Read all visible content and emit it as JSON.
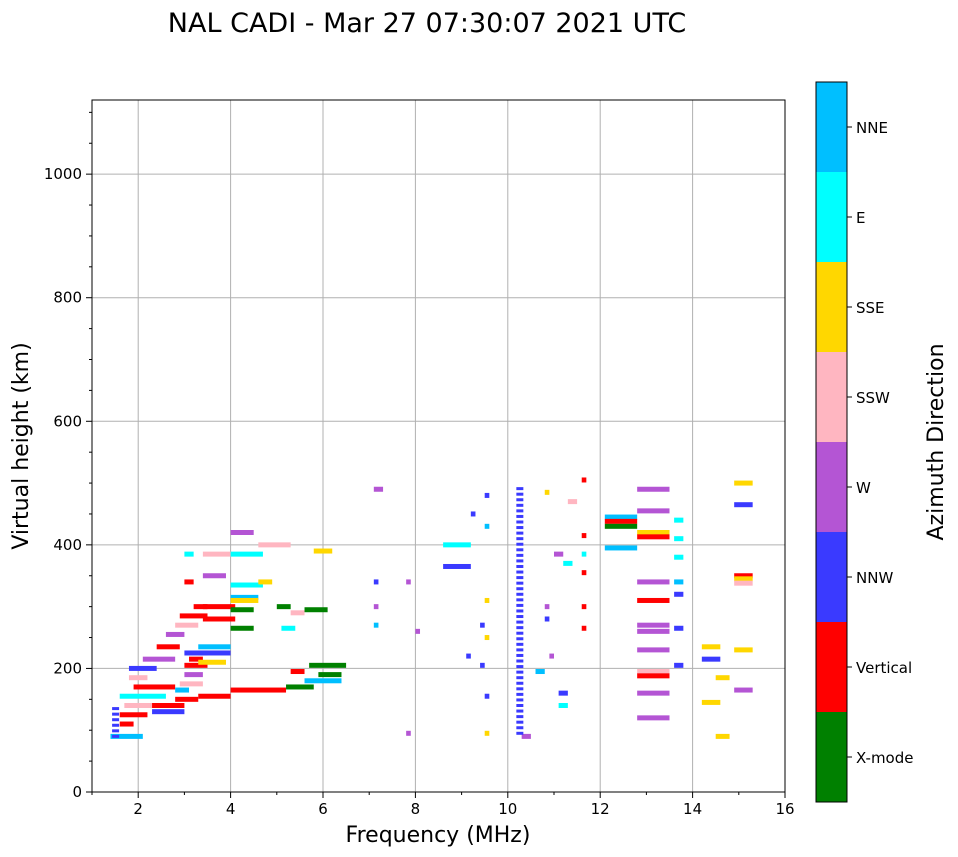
{
  "chart_data": {
    "type": "scatter",
    "title": "NAL CADI - Mar 27 07:30:07 2021 UTC",
    "xlabel": "Frequency (MHz)",
    "ylabel": "Virtual height (km)",
    "xlim": [
      1,
      16
    ],
    "ylim": [
      0,
      1120
    ],
    "xticks": [
      2,
      4,
      6,
      8,
      10,
      12,
      14,
      16
    ],
    "yticks": [
      0,
      200,
      400,
      600,
      800,
      1000
    ],
    "grid": true,
    "colorbar": {
      "label": "Azimuth Direction",
      "categories": [
        {
          "name": "X-mode",
          "color": "#008000"
        },
        {
          "name": "Vertical",
          "color": "#ff0000"
        },
        {
          "name": "NNW",
          "color": "#3a3aff"
        },
        {
          "name": "W",
          "color": "#b455d4"
        },
        {
          "name": "SSW",
          "color": "#ffb6c1"
        },
        {
          "name": "SSE",
          "color": "#ffd700"
        },
        {
          "name": "E",
          "color": "#00ffff"
        },
        {
          "name": "NNE",
          "color": "#00bfff"
        }
      ]
    },
    "segments": [
      {
        "f0": 1.4,
        "f1": 2.1,
        "h": 90,
        "c": "NNE"
      },
      {
        "f0": 1.6,
        "f1": 1.9,
        "h": 110,
        "c": "Vertical"
      },
      {
        "f0": 1.6,
        "f1": 2.2,
        "h": 125,
        "c": "Vertical"
      },
      {
        "f0": 1.7,
        "f1": 2.4,
        "h": 140,
        "c": "SSW"
      },
      {
        "f0": 1.6,
        "f1": 2.6,
        "h": 155,
        "c": "E"
      },
      {
        "f0": 1.9,
        "f1": 2.8,
        "h": 170,
        "c": "Vertical"
      },
      {
        "f0": 1.8,
        "f1": 2.2,
        "h": 185,
        "c": "SSW"
      },
      {
        "f0": 1.8,
        "f1": 2.4,
        "h": 200,
        "c": "NNW"
      },
      {
        "f0": 2.1,
        "f1": 2.8,
        "h": 215,
        "c": "W"
      },
      {
        "f0": 2.4,
        "f1": 2.9,
        "h": 235,
        "c": "Vertical"
      },
      {
        "f0": 2.6,
        "f1": 3.0,
        "h": 255,
        "c": "W"
      },
      {
        "f0": 2.8,
        "f1": 3.3,
        "h": 270,
        "c": "SSW"
      },
      {
        "f0": 2.9,
        "f1": 3.5,
        "h": 285,
        "c": "Vertical"
      },
      {
        "f0": 2.3,
        "f1": 3.0,
        "h": 130,
        "c": "NNW"
      },
      {
        "f0": 2.3,
        "f1": 3.0,
        "h": 140,
        "c": "Vertical"
      },
      {
        "f0": 2.8,
        "f1": 3.3,
        "h": 150,
        "c": "Vertical"
      },
      {
        "f0": 2.8,
        "f1": 3.1,
        "h": 165,
        "c": "NNE"
      },
      {
        "f0": 2.9,
        "f1": 3.4,
        "h": 175,
        "c": "SSW"
      },
      {
        "f0": 3.0,
        "f1": 3.4,
        "h": 190,
        "c": "W"
      },
      {
        "f0": 3.0,
        "f1": 3.5,
        "h": 205,
        "c": "Vertical"
      },
      {
        "f0": 3.1,
        "f1": 3.4,
        "h": 215,
        "c": "Vertical"
      },
      {
        "f0": 3.0,
        "f1": 3.5,
        "h": 225,
        "c": "NNW"
      },
      {
        "f0": 3.2,
        "f1": 3.5,
        "h": 300,
        "c": "Vertical"
      },
      {
        "f0": 3.4,
        "f1": 4.1,
        "h": 300,
        "c": "Vertical"
      },
      {
        "f0": 3.4,
        "f1": 4.1,
        "h": 280,
        "c": "Vertical"
      },
      {
        "f0": 3.3,
        "f1": 4.0,
        "h": 235,
        "c": "NNE"
      },
      {
        "f0": 3.3,
        "f1": 4.0,
        "h": 225,
        "c": "NNW"
      },
      {
        "f0": 3.3,
        "f1": 3.9,
        "h": 210,
        "c": "SSE"
      },
      {
        "f0": 3.3,
        "f1": 4.0,
        "h": 155,
        "c": "Vertical"
      },
      {
        "f0": 3.4,
        "f1": 3.9,
        "h": 350,
        "c": "W"
      },
      {
        "f0": 3.4,
        "f1": 4.0,
        "h": 385,
        "c": "SSW"
      },
      {
        "f0": 3.0,
        "f1": 3.2,
        "h": 385,
        "c": "E"
      },
      {
        "f0": 3.0,
        "f1": 3.2,
        "h": 340,
        "c": "Vertical"
      },
      {
        "f0": 4.0,
        "f1": 5.2,
        "h": 165,
        "c": "Vertical"
      },
      {
        "f0": 5.2,
        "f1": 5.8,
        "h": 170,
        "c": "X-mode"
      },
      {
        "f0": 5.6,
        "f1": 6.4,
        "h": 180,
        "c": "NNE"
      },
      {
        "f0": 5.9,
        "f1": 6.4,
        "h": 190,
        "c": "X-mode"
      },
      {
        "f0": 5.7,
        "f1": 6.5,
        "h": 205,
        "c": "X-mode"
      },
      {
        "f0": 5.3,
        "f1": 5.6,
        "h": 195,
        "c": "Vertical"
      },
      {
        "f0": 4.0,
        "f1": 4.5,
        "h": 265,
        "c": "X-mode"
      },
      {
        "f0": 4.0,
        "f1": 4.5,
        "h": 295,
        "c": "X-mode"
      },
      {
        "f0": 4.0,
        "f1": 4.6,
        "h": 315,
        "c": "NNE"
      },
      {
        "f0": 4.0,
        "f1": 4.7,
        "h": 335,
        "c": "E"
      },
      {
        "f0": 4.0,
        "f1": 4.6,
        "h": 310,
        "c": "SSE"
      },
      {
        "f0": 4.0,
        "f1": 4.7,
        "h": 385,
        "c": "E"
      },
      {
        "f0": 4.0,
        "f1": 4.5,
        "h": 420,
        "c": "W"
      },
      {
        "f0": 4.6,
        "f1": 5.3,
        "h": 400,
        "c": "SSW"
      },
      {
        "f0": 5.0,
        "f1": 5.3,
        "h": 300,
        "c": "X-mode"
      },
      {
        "f0": 5.6,
        "f1": 6.1,
        "h": 295,
        "c": "X-mode"
      },
      {
        "f0": 5.8,
        "f1": 6.2,
        "h": 390,
        "c": "SSE"
      },
      {
        "f0": 5.3,
        "f1": 5.6,
        "h": 290,
        "c": "SSW"
      },
      {
        "f0": 4.6,
        "f1": 4.9,
        "h": 340,
        "c": "SSE"
      },
      {
        "f0": 5.1,
        "f1": 5.4,
        "h": 265,
        "c": "E"
      },
      {
        "f0": 7.1,
        "f1": 7.3,
        "h": 490,
        "c": "W"
      },
      {
        "f0": 7.1,
        "f1": 7.2,
        "h": 340,
        "c": "NNW"
      },
      {
        "f0": 7.1,
        "f1": 7.2,
        "h": 300,
        "c": "W"
      },
      {
        "f0": 7.1,
        "f1": 7.2,
        "h": 270,
        "c": "NNE"
      },
      {
        "f0": 7.8,
        "f1": 7.9,
        "h": 340,
        "c": "W"
      },
      {
        "f0": 8.0,
        "f1": 8.1,
        "h": 260,
        "c": "W"
      },
      {
        "f0": 7.8,
        "f1": 7.9,
        "h": 95,
        "c": "W"
      },
      {
        "f0": 8.6,
        "f1": 9.2,
        "h": 400,
        "c": "E"
      },
      {
        "f0": 8.6,
        "f1": 9.2,
        "h": 365,
        "c": "NNW"
      },
      {
        "f0": 9.2,
        "f1": 9.3,
        "h": 450,
        "c": "NNW"
      },
      {
        "f0": 9.5,
        "f1": 9.6,
        "h": 480,
        "c": "NNW"
      },
      {
        "f0": 9.5,
        "f1": 9.6,
        "h": 430,
        "c": "NNE"
      },
      {
        "f0": 9.5,
        "f1": 9.6,
        "h": 310,
        "c": "SSE"
      },
      {
        "f0": 9.4,
        "f1": 9.5,
        "h": 270,
        "c": "NNW"
      },
      {
        "f0": 9.5,
        "f1": 9.6,
        "h": 250,
        "c": "SSE"
      },
      {
        "f0": 9.1,
        "f1": 9.2,
        "h": 220,
        "c": "NNW"
      },
      {
        "f0": 9.4,
        "f1": 9.5,
        "h": 205,
        "c": "NNW"
      },
      {
        "f0": 9.5,
        "f1": 9.6,
        "h": 155,
        "c": "NNW"
      },
      {
        "f0": 9.5,
        "f1": 9.6,
        "h": 95,
        "c": "SSE"
      },
      {
        "f0": 10.3,
        "f1": 10.5,
        "h": 90,
        "c": "W"
      },
      {
        "f0": 10.6,
        "f1": 10.8,
        "h": 195,
        "c": "NNE"
      },
      {
        "f0": 10.8,
        "f1": 10.9,
        "h": 485,
        "c": "SSE"
      },
      {
        "f0": 10.8,
        "f1": 10.9,
        "h": 300,
        "c": "W"
      },
      {
        "f0": 10.8,
        "f1": 10.9,
        "h": 280,
        "c": "NNW"
      },
      {
        "f0": 10.9,
        "f1": 11.0,
        "h": 220,
        "c": "W"
      },
      {
        "f0": 11.0,
        "f1": 11.2,
        "h": 385,
        "c": "W"
      },
      {
        "f0": 11.1,
        "f1": 11.3,
        "h": 160,
        "c": "NNW"
      },
      {
        "f0": 11.1,
        "f1": 11.3,
        "h": 140,
        "c": "E"
      },
      {
        "f0": 11.2,
        "f1": 11.4,
        "h": 370,
        "c": "E"
      },
      {
        "f0": 11.3,
        "f1": 11.5,
        "h": 470,
        "c": "SSW"
      },
      {
        "f0": 11.6,
        "f1": 11.7,
        "h": 505,
        "c": "Vertical"
      },
      {
        "f0": 11.6,
        "f1": 11.7,
        "h": 415,
        "c": "Vertical"
      },
      {
        "f0": 11.6,
        "f1": 11.7,
        "h": 385,
        "c": "E"
      },
      {
        "f0": 11.6,
        "f1": 11.7,
        "h": 355,
        "c": "Vertical"
      },
      {
        "f0": 11.6,
        "f1": 11.7,
        "h": 300,
        "c": "Vertical"
      },
      {
        "f0": 11.6,
        "f1": 11.7,
        "h": 265,
        "c": "Vertical"
      },
      {
        "f0": 12.1,
        "f1": 12.8,
        "h": 445,
        "c": "NNE"
      },
      {
        "f0": 12.1,
        "f1": 12.8,
        "h": 438,
        "c": "Vertical"
      },
      {
        "f0": 12.1,
        "f1": 12.8,
        "h": 430,
        "c": "X-mode"
      },
      {
        "f0": 12.1,
        "f1": 12.8,
        "h": 395,
        "c": "NNE"
      },
      {
        "f0": 12.8,
        "f1": 13.5,
        "h": 490,
        "c": "W"
      },
      {
        "f0": 12.8,
        "f1": 13.5,
        "h": 455,
        "c": "W"
      },
      {
        "f0": 12.8,
        "f1": 13.5,
        "h": 420,
        "c": "SSE"
      },
      {
        "f0": 12.8,
        "f1": 13.5,
        "h": 413,
        "c": "Vertical"
      },
      {
        "f0": 12.8,
        "f1": 13.5,
        "h": 340,
        "c": "W"
      },
      {
        "f0": 12.8,
        "f1": 13.5,
        "h": 310,
        "c": "Vertical"
      },
      {
        "f0": 12.8,
        "f1": 13.5,
        "h": 270,
        "c": "W"
      },
      {
        "f0": 12.8,
        "f1": 13.5,
        "h": 260,
        "c": "W"
      },
      {
        "f0": 12.8,
        "f1": 13.5,
        "h": 230,
        "c": "W"
      },
      {
        "f0": 12.8,
        "f1": 13.5,
        "h": 195,
        "c": "SSW"
      },
      {
        "f0": 12.8,
        "f1": 13.5,
        "h": 188,
        "c": "Vertical"
      },
      {
        "f0": 12.8,
        "f1": 13.5,
        "h": 160,
        "c": "W"
      },
      {
        "f0": 12.8,
        "f1": 13.5,
        "h": 120,
        "c": "W"
      },
      {
        "f0": 13.6,
        "f1": 13.8,
        "h": 440,
        "c": "E"
      },
      {
        "f0": 13.6,
        "f1": 13.8,
        "h": 410,
        "c": "E"
      },
      {
        "f0": 13.6,
        "f1": 13.8,
        "h": 380,
        "c": "E"
      },
      {
        "f0": 13.6,
        "f1": 13.8,
        "h": 340,
        "c": "NNE"
      },
      {
        "f0": 13.6,
        "f1": 13.8,
        "h": 320,
        "c": "NNW"
      },
      {
        "f0": 13.6,
        "f1": 13.8,
        "h": 265,
        "c": "NNW"
      },
      {
        "f0": 13.6,
        "f1": 13.8,
        "h": 205,
        "c": "NNW"
      },
      {
        "f0": 14.2,
        "f1": 14.6,
        "h": 235,
        "c": "SSE"
      },
      {
        "f0": 14.2,
        "f1": 14.6,
        "h": 215,
        "c": "NNW"
      },
      {
        "f0": 14.2,
        "f1": 14.6,
        "h": 145,
        "c": "SSE"
      },
      {
        "f0": 14.5,
        "f1": 14.8,
        "h": 185,
        "c": "SSE"
      },
      {
        "f0": 14.5,
        "f1": 14.8,
        "h": 90,
        "c": "SSE"
      },
      {
        "f0": 14.9,
        "f1": 15.3,
        "h": 500,
        "c": "SSE"
      },
      {
        "f0": 14.9,
        "f1": 15.3,
        "h": 465,
        "c": "NNW"
      },
      {
        "f0": 14.9,
        "f1": 15.3,
        "h": 350,
        "c": "Vertical"
      },
      {
        "f0": 14.9,
        "f1": 15.3,
        "h": 345,
        "c": "SSE"
      },
      {
        "f0": 14.9,
        "f1": 15.3,
        "h": 338,
        "c": "SSW"
      },
      {
        "f0": 14.9,
        "f1": 15.3,
        "h": 230,
        "c": "SSE"
      },
      {
        "f0": 14.9,
        "f1": 15.3,
        "h": 165,
        "c": "W"
      }
    ],
    "column_traces": [
      {
        "f": 10.25,
        "h0": 95,
        "h1": 495,
        "c": "NNW"
      },
      {
        "f": 1.5,
        "h0": 90,
        "h1": 140,
        "c": "NNW"
      }
    ]
  }
}
